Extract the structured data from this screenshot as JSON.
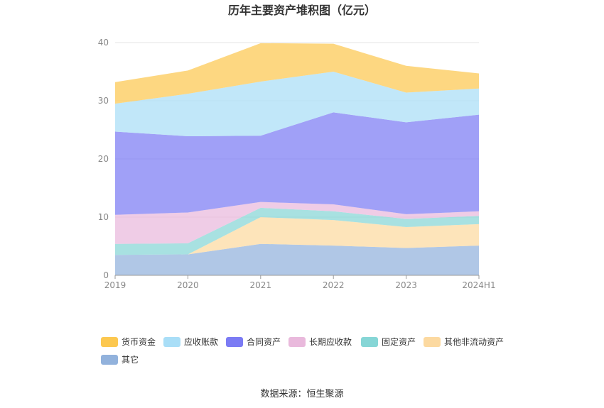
{
  "chart_data": {
    "type": "area",
    "stacked": true,
    "title": "历年主要资产堆积图（亿元）",
    "categories": [
      "2019",
      "2020",
      "2021",
      "2022",
      "2023",
      "2024H1"
    ],
    "ylim": [
      0,
      40
    ],
    "yticks": [
      "0",
      "10",
      "20",
      "30",
      "40"
    ],
    "grid": true,
    "legend_position": "bottom-left",
    "series": [
      {
        "name": "其它",
        "color": "#92b2dc",
        "values": [
          3.5,
          3.6,
          5.4,
          5.1,
          4.7,
          5.1
        ]
      },
      {
        "name": "其他非流动资产",
        "color": "#fcd9a0",
        "values": [
          0.0,
          0.0,
          4.6,
          4.4,
          3.6,
          3.7
        ]
      },
      {
        "name": "固定资产",
        "color": "#86d6d6",
        "values": [
          1.9,
          1.9,
          1.6,
          1.5,
          1.4,
          1.4
        ]
      },
      {
        "name": "长期应收款",
        "color": "#e9b9dc",
        "values": [
          5.0,
          5.3,
          1.0,
          1.2,
          0.8,
          0.8
        ]
      },
      {
        "name": "合同资产",
        "color": "#7b7bf4",
        "values": [
          14.3,
          13.1,
          11.4,
          15.8,
          15.8,
          16.6
        ]
      },
      {
        "name": "应收账款",
        "color": "#a9def7",
        "values": [
          4.8,
          7.3,
          9.3,
          7.0,
          5.1,
          4.5
        ]
      },
      {
        "name": "货币资金",
        "color": "#fcc850",
        "values": [
          3.7,
          4.0,
          6.6,
          4.8,
          4.6,
          2.6
        ]
      }
    ],
    "legend_order": [
      "货币资金",
      "应收账款",
      "合同资产",
      "长期应收款",
      "固定资产",
      "其他非流动资产",
      "其它"
    ]
  },
  "source_text": "数据来源：恒生聚源"
}
